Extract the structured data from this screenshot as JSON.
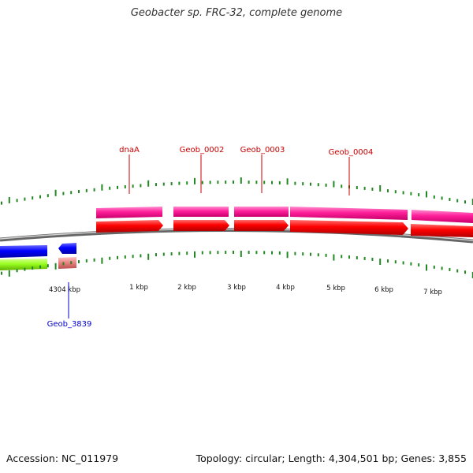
{
  "title": "Geobacter sp. FRC-32, complete genome",
  "footer": {
    "accession": "Accession: NC_011979",
    "summary": "Topology: circular; Length: 4,304,501 bp; Genes: 3,855"
  },
  "chart_data": {
    "type": "genome-map",
    "scale_labels": [
      "4304 kbp",
      "1 kbp",
      "2 kbp",
      "3 kbp",
      "4 kbp",
      "5 kbp",
      "6 kbp",
      "7 kbp"
    ],
    "gene_labels": [
      {
        "name": "dnaA",
        "color": "#cc0000"
      },
      {
        "name": "Geob_0002",
        "color": "#cc0000"
      },
      {
        "name": "Geob_0003",
        "color": "#cc0000"
      },
      {
        "name": "Geob_0004",
        "color": "#cc0000"
      },
      {
        "name": "Geob_3839",
        "color": "#0000cc"
      }
    ],
    "colors": {
      "cds_forward": "#ff0000",
      "gene_forward": "#ff1493",
      "cds_reverse": "#0000ff",
      "gene_reverse": "#99ff22",
      "rrna": "#e88080",
      "ticks": "#228822",
      "backbone": "#888888"
    }
  }
}
